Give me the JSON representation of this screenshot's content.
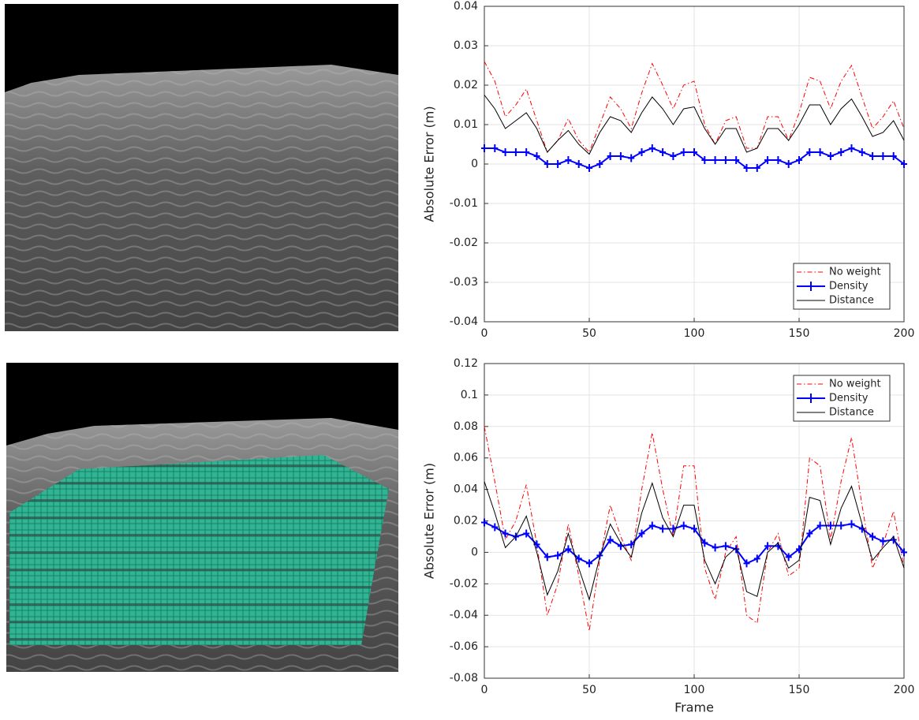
{
  "chart_data": [
    {
      "type": "line",
      "ylabel": "Absolute Error (m)",
      "legend": "lower right",
      "grid": true,
      "xlim": [
        0,
        200
      ],
      "xticks": [
        0,
        50,
        100,
        150,
        200
      ],
      "ylim": [
        -0.04,
        0.04
      ],
      "yticks": [
        -0.04,
        -0.03,
        -0.02,
        -0.01,
        0,
        0.01,
        0.02,
        0.03,
        0.04
      ],
      "x": [
        0,
        5,
        10,
        15,
        20,
        25,
        30,
        35,
        40,
        45,
        50,
        55,
        60,
        65,
        70,
        75,
        80,
        85,
        90,
        95,
        100,
        105,
        110,
        115,
        120,
        125,
        130,
        135,
        140,
        145,
        150,
        155,
        160,
        165,
        170,
        175,
        180,
        185,
        190,
        195,
        200
      ],
      "series": [
        {
          "name": "No weight",
          "color": "#ff0000",
          "style": "dashdot",
          "values": [
            0.026,
            0.021,
            0.012,
            0.015,
            0.019,
            0.011,
            0.003,
            0.006,
            0.0115,
            0.006,
            0.003,
            0.01,
            0.017,
            0.014,
            0.009,
            0.018,
            0.0255,
            0.02,
            0.014,
            0.02,
            0.021,
            0.01,
            0.005,
            0.011,
            0.012,
            0.004,
            0.004,
            0.012,
            0.012,
            0.006,
            0.013,
            0.022,
            0.021,
            0.014,
            0.021,
            0.025,
            0.017,
            0.009,
            0.012,
            0.016,
            0.009
          ]
        },
        {
          "name": "Density",
          "color": "#0000ff",
          "style": "plus",
          "values": [
            0.004,
            0.004,
            0.003,
            0.003,
            0.003,
            0.002,
            0.0,
            0.0,
            0.001,
            0.0,
            -0.001,
            0.0,
            0.002,
            0.002,
            0.0015,
            0.003,
            0.004,
            0.003,
            0.002,
            0.003,
            0.003,
            0.001,
            0.001,
            0.001,
            0.001,
            -0.001,
            -0.001,
            0.001,
            0.001,
            0.0,
            0.001,
            0.003,
            0.003,
            0.002,
            0.003,
            0.004,
            0.003,
            0.002,
            0.002,
            0.002,
            0.0
          ]
        },
        {
          "name": "Distance",
          "color": "#000000",
          "style": "solid",
          "values": [
            0.0175,
            0.014,
            0.009,
            0.011,
            0.013,
            0.009,
            0.003,
            0.006,
            0.0085,
            0.005,
            0.0025,
            0.008,
            0.012,
            0.011,
            0.008,
            0.013,
            0.017,
            0.014,
            0.01,
            0.014,
            0.0145,
            0.009,
            0.005,
            0.009,
            0.009,
            0.003,
            0.004,
            0.009,
            0.009,
            0.006,
            0.01,
            0.015,
            0.015,
            0.01,
            0.014,
            0.0165,
            0.012,
            0.007,
            0.008,
            0.011,
            0.006
          ]
        }
      ]
    },
    {
      "type": "line",
      "ylabel": "Absolute Error (m)",
      "xlabel": "Frame",
      "legend": "upper right",
      "grid": true,
      "xlim": [
        0,
        200
      ],
      "xticks": [
        0,
        50,
        100,
        150,
        200
      ],
      "ylim": [
        -0.08,
        0.12
      ],
      "yticks": [
        -0.08,
        -0.06,
        -0.04,
        -0.02,
        0,
        0.02,
        0.04,
        0.06,
        0.08,
        0.1,
        0.12
      ],
      "x": [
        0,
        5,
        10,
        15,
        20,
        25,
        30,
        35,
        40,
        45,
        50,
        55,
        60,
        65,
        70,
        75,
        80,
        85,
        90,
        95,
        100,
        105,
        110,
        115,
        120,
        125,
        130,
        135,
        140,
        145,
        150,
        155,
        160,
        165,
        170,
        175,
        180,
        185,
        190,
        195,
        200
      ],
      "series": [
        {
          "name": "No weight",
          "color": "#ff0000",
          "style": "dashdot",
          "values": [
            0.08,
            0.045,
            0.008,
            0.02,
            0.043,
            0.005,
            -0.04,
            -0.02,
            0.018,
            -0.015,
            -0.05,
            -0.005,
            0.03,
            0.01,
            -0.005,
            0.04,
            0.076,
            0.04,
            0.01,
            0.055,
            0.055,
            -0.01,
            -0.03,
            0.0,
            0.01,
            -0.04,
            -0.045,
            0.0,
            0.012,
            -0.015,
            -0.01,
            0.06,
            0.055,
            0.008,
            0.045,
            0.073,
            0.03,
            -0.01,
            0.005,
            0.026,
            -0.01
          ]
        },
        {
          "name": "Density",
          "color": "#0000ff",
          "style": "plus",
          "values": [
            0.019,
            0.016,
            0.012,
            0.01,
            0.012,
            0.005,
            -0.003,
            -0.002,
            0.002,
            -0.004,
            -0.007,
            -0.002,
            0.008,
            0.004,
            0.005,
            0.012,
            0.017,
            0.015,
            0.015,
            0.017,
            0.015,
            0.006,
            0.003,
            0.004,
            0.002,
            -0.007,
            -0.004,
            0.004,
            0.004,
            -0.003,
            0.002,
            0.012,
            0.017,
            0.017,
            0.017,
            0.018,
            0.015,
            0.01,
            0.007,
            0.008,
            0.0
          ]
        },
        {
          "name": "Distance",
          "color": "#000000",
          "style": "solid",
          "values": [
            0.045,
            0.025,
            0.003,
            0.01,
            0.023,
            0.0,
            -0.027,
            -0.012,
            0.012,
            -0.01,
            -0.03,
            -0.003,
            0.018,
            0.006,
            -0.003,
            0.025,
            0.044,
            0.022,
            0.01,
            0.03,
            0.03,
            -0.005,
            -0.02,
            -0.003,
            0.003,
            -0.025,
            -0.028,
            0.0,
            0.006,
            -0.01,
            -0.005,
            0.035,
            0.033,
            0.005,
            0.028,
            0.042,
            0.018,
            -0.005,
            0.003,
            0.01,
            -0.01
          ]
        }
      ]
    }
  ]
}
